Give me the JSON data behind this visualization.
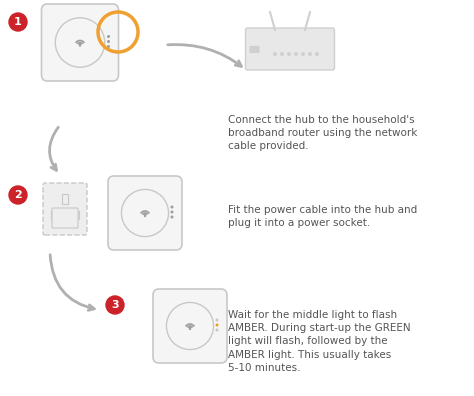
{
  "background_color": "#ffffff",
  "step_circle_color": "#cc2229",
  "step_circle_text_color": "#ffffff",
  "step_numbers": [
    "1",
    "2",
    "3"
  ],
  "arrow_color": "#b0b0b0",
  "hub_outline_color": "#c8c8c8",
  "hub_fill_color": "#f5f5f5",
  "hub_circle_color": "#e0e0e0",
  "hub_dot_color": "#9e9e9e",
  "router_color": "#d0d0d0",
  "orange_circle_color": "#f0a030",
  "plug_color": "#c8c8c8",
  "plug_fill": "#eeeeee",
  "text_color": "#555555",
  "text_bold_color": "#333333",
  "step1_text": "Connect the hub to the household's\nbroadband router using the network\ncable provided.",
  "step2_text": "Fit the power cable into the hub and\nplug it into a power socket.",
  "step3_text": "Wait for the middle light to flash\nAMBER. During start-up the GREEN\nlight will flash, followed by the\nAMBER light. This usually takes\n5-10 minutes.",
  "font_size": 7.5
}
